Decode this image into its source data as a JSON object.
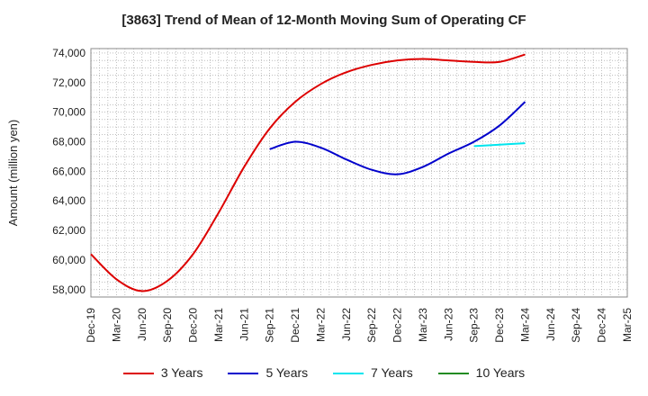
{
  "chart_data": {
    "type": "line",
    "title": "[3863]  Trend of Mean of 12-Month Moving Sum of Operating CF",
    "xlabel": "",
    "ylabel": "Amount (million yen)",
    "ylim": [
      57500,
      74300
    ],
    "grid": true,
    "legend_position": "bottom",
    "x_ticks": [
      "Dec-19",
      "Mar-20",
      "Jun-20",
      "Sep-20",
      "Dec-20",
      "Mar-21",
      "Jun-21",
      "Sep-21",
      "Dec-21",
      "Mar-22",
      "Jun-22",
      "Sep-22",
      "Dec-22",
      "Mar-23",
      "Jun-23",
      "Sep-23",
      "Dec-23",
      "Mar-24",
      "Jun-24",
      "Sep-24",
      "Dec-24",
      "Mar-25"
    ],
    "y_ticks": [
      58000,
      60000,
      62000,
      64000,
      66000,
      68000,
      70000,
      72000,
      74000
    ],
    "y_tick_labels": [
      "58,000",
      "60,000",
      "62,000",
      "64,000",
      "66,000",
      "68,000",
      "70,000",
      "72,000",
      "74,000"
    ],
    "series": [
      {
        "name": "3 Years",
        "color": "#dd0000",
        "values": [
          [
            0,
            60400
          ],
          [
            1,
            58700
          ],
          [
            2,
            57900
          ],
          [
            3,
            58600
          ],
          [
            4,
            60400
          ],
          [
            5,
            63200
          ],
          [
            6,
            66300
          ],
          [
            7,
            68900
          ],
          [
            8,
            70700
          ],
          [
            9,
            71900
          ],
          [
            10,
            72700
          ],
          [
            11,
            73200
          ],
          [
            12,
            73500
          ],
          [
            13,
            73600
          ],
          [
            14,
            73500
          ],
          [
            15,
            73400
          ],
          [
            16,
            73400
          ],
          [
            17,
            73900
          ]
        ]
      },
      {
        "name": "5 Years",
        "color": "#0000cc",
        "values": [
          [
            7,
            67500
          ],
          [
            8,
            68000
          ],
          [
            9,
            67600
          ],
          [
            10,
            66800
          ],
          [
            11,
            66100
          ],
          [
            12,
            65800
          ],
          [
            13,
            66300
          ],
          [
            14,
            67200
          ],
          [
            15,
            68000
          ],
          [
            16,
            69100
          ],
          [
            17,
            70700
          ]
        ]
      },
      {
        "name": "7 Years",
        "color": "#00e5ee",
        "values": [
          [
            15,
            67700
          ],
          [
            16,
            67800
          ],
          [
            17,
            67900
          ]
        ]
      },
      {
        "name": "10 Years",
        "color": "#228b22",
        "values": []
      }
    ]
  }
}
